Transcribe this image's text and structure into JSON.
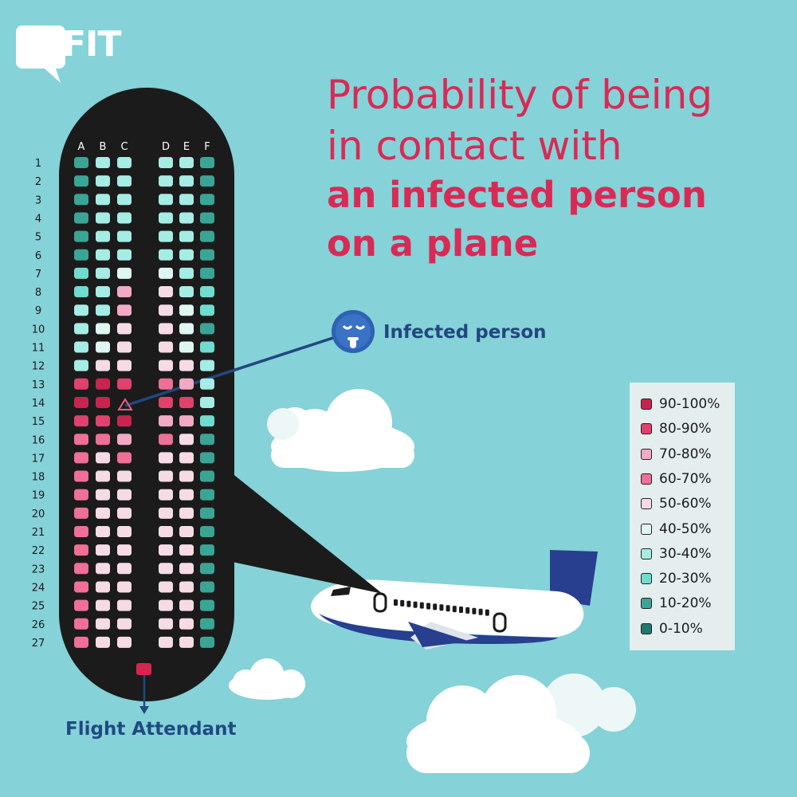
{
  "brand": {
    "logo_text": "FIT"
  },
  "title": {
    "line1": "Probability of being",
    "line2": "in contact with",
    "line3": "an infected person",
    "line4": "on a plane"
  },
  "annotations": {
    "infected_person": "Infected person",
    "flight_attendant": "Flight Attendant"
  },
  "chart_data": {
    "type": "heatmap",
    "columns": [
      "A",
      "B",
      "C",
      "D",
      "E",
      "F"
    ],
    "rows": [
      "1",
      "2",
      "3",
      "4",
      "5",
      "6",
      "7",
      "8",
      "9",
      "10",
      "11",
      "12",
      "13",
      "14",
      "15",
      "16",
      "17",
      "18",
      "19",
      "20",
      "21",
      "22",
      "23",
      "24",
      "25",
      "26",
      "27"
    ],
    "infected_seat": {
      "row": "14",
      "column": "C"
    },
    "flight_attendant_seat": "rear galley",
    "bins": [
      "90-100%",
      "80-90%",
      "70-80%",
      "60-70%",
      "50-60%",
      "40-50%",
      "30-40%",
      "20-30%",
      "10-20%",
      "0-10%"
    ],
    "bin_colors": [
      "#c8244f",
      "#e0416d",
      "#f2a9c6",
      "#ef6f97",
      "#f6dbe6",
      "#dff7f3",
      "#a4ece4",
      "#6fdccf",
      "#3aa595",
      "#207a6d"
    ],
    "seat_bins": [
      [
        8,
        6,
        6,
        6,
        6,
        8
      ],
      [
        8,
        6,
        6,
        6,
        6,
        8
      ],
      [
        8,
        6,
        6,
        6,
        6,
        8
      ],
      [
        8,
        6,
        6,
        6,
        6,
        8
      ],
      [
        8,
        6,
        6,
        6,
        6,
        8
      ],
      [
        8,
        6,
        6,
        6,
        6,
        8
      ],
      [
        7,
        6,
        5,
        5,
        6,
        8
      ],
      [
        7,
        6,
        2,
        4,
        6,
        7
      ],
      [
        6,
        6,
        2,
        4,
        5,
        7
      ],
      [
        6,
        5,
        4,
        4,
        5,
        8
      ],
      [
        6,
        5,
        4,
        4,
        5,
        7
      ],
      [
        6,
        4,
        4,
        4,
        4,
        6
      ],
      [
        1,
        0,
        1,
        3,
        2,
        6
      ],
      [
        0,
        0,
        0,
        1,
        1,
        6
      ],
      [
        1,
        1,
        0,
        2,
        2,
        7
      ],
      [
        3,
        3,
        2,
        3,
        4,
        8
      ],
      [
        3,
        4,
        3,
        4,
        4,
        8
      ],
      [
        3,
        4,
        4,
        4,
        4,
        8
      ],
      [
        3,
        4,
        4,
        4,
        4,
        8
      ],
      [
        3,
        4,
        4,
        4,
        4,
        8
      ],
      [
        3,
        4,
        4,
        4,
        4,
        8
      ],
      [
        3,
        4,
        4,
        4,
        4,
        8
      ],
      [
        3,
        4,
        4,
        4,
        4,
        8
      ],
      [
        3,
        4,
        4,
        4,
        4,
        8
      ],
      [
        3,
        4,
        4,
        4,
        4,
        8
      ],
      [
        3,
        4,
        4,
        4,
        4,
        8
      ],
      [
        3,
        4,
        4,
        4,
        4,
        8
      ]
    ]
  },
  "colors": {
    "background": "#85d2d8",
    "cabin": "#1b1b1b",
    "title": "#d92a55",
    "label_blue": "#22477e",
    "attendant": "#d6244e",
    "plane_body": "#ffffff",
    "plane_tail": "#283f8f"
  },
  "icons": [
    "speech-bubble-logo-icon",
    "sick-face-icon",
    "triangle-marker-icon",
    "down-arrow-icon",
    "airplane-icon",
    "cloud-icon"
  ]
}
